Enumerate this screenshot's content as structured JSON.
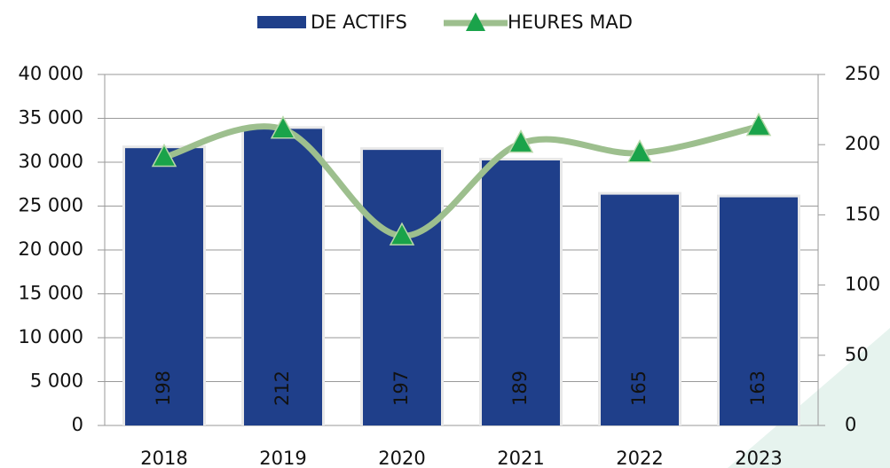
{
  "chart_data": {
    "type": "bar_line",
    "categories": [
      "2018",
      "2019",
      "2020",
      "2021",
      "2022",
      "2023"
    ],
    "series": [
      {
        "name": "DE ACTIFS",
        "type": "bar",
        "color": "#1f3f8a",
        "values": [
          31600,
          33800,
          31400,
          30200,
          26300,
          26000
        ],
        "value_labels": [
          "198",
          "212",
          "197",
          "189",
          "165",
          "163"
        ]
      },
      {
        "name": "HEURES MAD",
        "type": "line",
        "axis": "y2",
        "color": "#9dbf8e",
        "marker_color": "#1aa34a",
        "values": [
          191,
          211,
          135,
          201,
          194,
          213
        ]
      }
    ],
    "ylim": [
      0,
      40000
    ],
    "yticks": [
      0,
      {
        "value": 5000,
        "label": "5 000"
      },
      {
        "value": 10000,
        "label": "10 000"
      },
      {
        "value": 15000,
        "label": "15 000"
      },
      {
        "value": 20000,
        "label": "20 000"
      },
      {
        "value": 25000,
        "label": "25 000"
      },
      {
        "value": 30000,
        "label": "30 000"
      },
      {
        "value": 35000,
        "label": "35 000"
      },
      {
        "value": 40000,
        "label": "40 000"
      }
    ],
    "y2lim": [
      0,
      250
    ],
    "y2ticks": [
      0,
      50,
      100,
      150,
      200,
      250
    ],
    "grid": true,
    "legend": "top"
  }
}
